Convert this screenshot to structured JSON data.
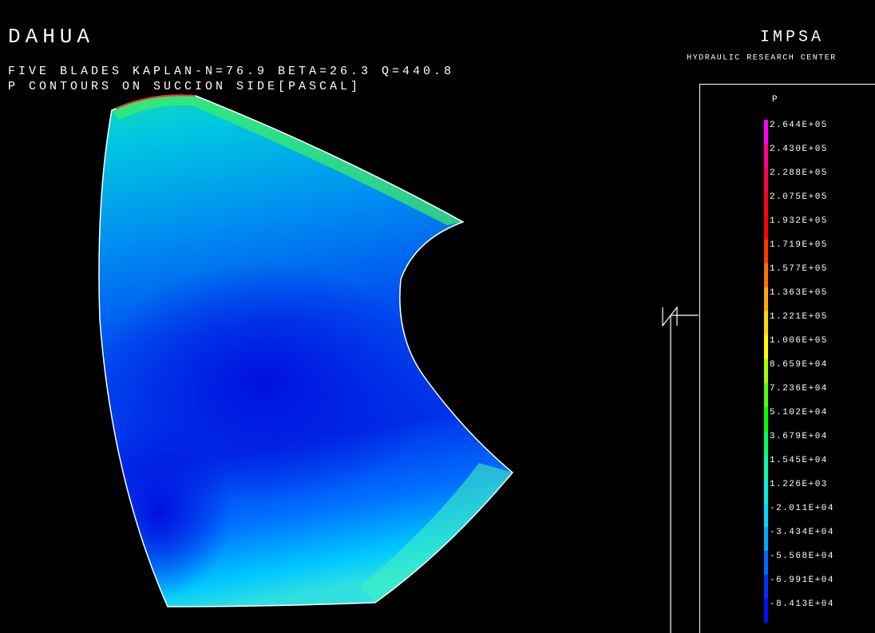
{
  "header": {
    "title": "DAHUA",
    "subtitle": "FIVE BLADES KAPLAN-N=76.9 BETA=26.3 Q=440.8",
    "description": "P CONTOURS ON SUCCION SIDE[PASCAL]",
    "organization": "IMPSA",
    "department": "HYDRAULIC RESEARCH CENTER"
  },
  "legend": {
    "title": "P",
    "entries": [
      {
        "label": "2.644E+05",
        "color": "#ff00ff"
      },
      {
        "label": "2.430E+05",
        "color": "#ff0090"
      },
      {
        "label": "2.288E+05",
        "color": "#ff0050"
      },
      {
        "label": "2.075E+05",
        "color": "#ff0020"
      },
      {
        "label": "1.932E+05",
        "color": "#ff0000"
      },
      {
        "label": "1.719E+05",
        "color": "#ff3800"
      },
      {
        "label": "1.577E+05",
        "color": "#ff7000"
      },
      {
        "label": "1.363E+05",
        "color": "#ffa800"
      },
      {
        "label": "1.221E+05",
        "color": "#ffd800"
      },
      {
        "label": "1.006E+05",
        "color": "#ffff00"
      },
      {
        "label": "8.659E+04",
        "color": "#a0ff00"
      },
      {
        "label": "7.236E+04",
        "color": "#50ff00"
      },
      {
        "label": "5.102E+04",
        "color": "#00ff00"
      },
      {
        "label": "3.679E+04",
        "color": "#00ff60"
      },
      {
        "label": "1.545E+04",
        "color": "#00ffa8"
      },
      {
        "label": "1.226E+03",
        "color": "#00f0e0"
      },
      {
        "label": "-2.011E+04",
        "color": "#00d8ff"
      },
      {
        "label": "-3.434E+04",
        "color": "#00a8ff"
      },
      {
        "label": "-5.568E+04",
        "color": "#0068ff"
      },
      {
        "label": "-6.991E+04",
        "color": "#0030ff"
      },
      {
        "label": "-8.413E+04",
        "color": "#0010ff"
      }
    ]
  }
}
